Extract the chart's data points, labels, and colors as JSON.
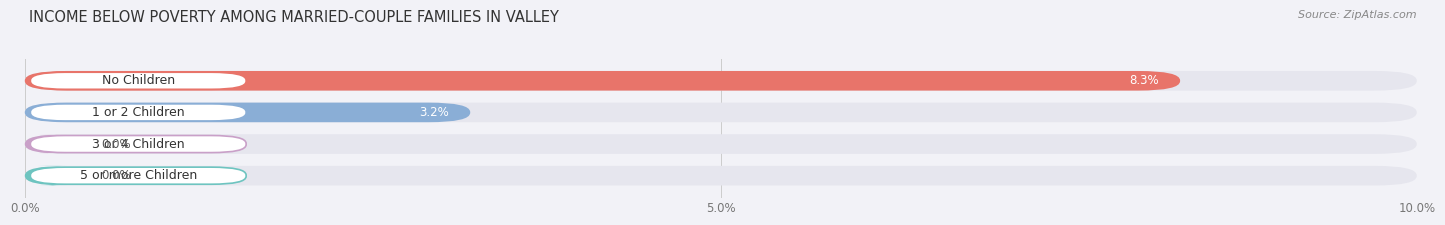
{
  "title": "INCOME BELOW POVERTY AMONG MARRIED-COUPLE FAMILIES IN VALLEY",
  "source": "Source: ZipAtlas.com",
  "categories": [
    "No Children",
    "1 or 2 Children",
    "3 or 4 Children",
    "5 or more Children"
  ],
  "values": [
    8.3,
    3.2,
    0.0,
    0.0
  ],
  "value_labels": [
    "8.3%",
    "3.2%",
    "0.0%",
    "0.0%"
  ],
  "bar_colors": [
    "#e8746a",
    "#8aaed6",
    "#c9a0c8",
    "#6ec4c0"
  ],
  "xlim": [
    0,
    10.0
  ],
  "xticks": [
    0.0,
    5.0,
    10.0
  ],
  "xticklabels": [
    "0.0%",
    "5.0%",
    "10.0%"
  ],
  "bar_height": 0.62,
  "background_color": "#f2f2f7",
  "bar_bg_color": "#e6e6ee",
  "title_fontsize": 10.5,
  "label_fontsize": 9,
  "value_fontsize": 8.5,
  "tick_fontsize": 8.5,
  "source_fontsize": 8
}
